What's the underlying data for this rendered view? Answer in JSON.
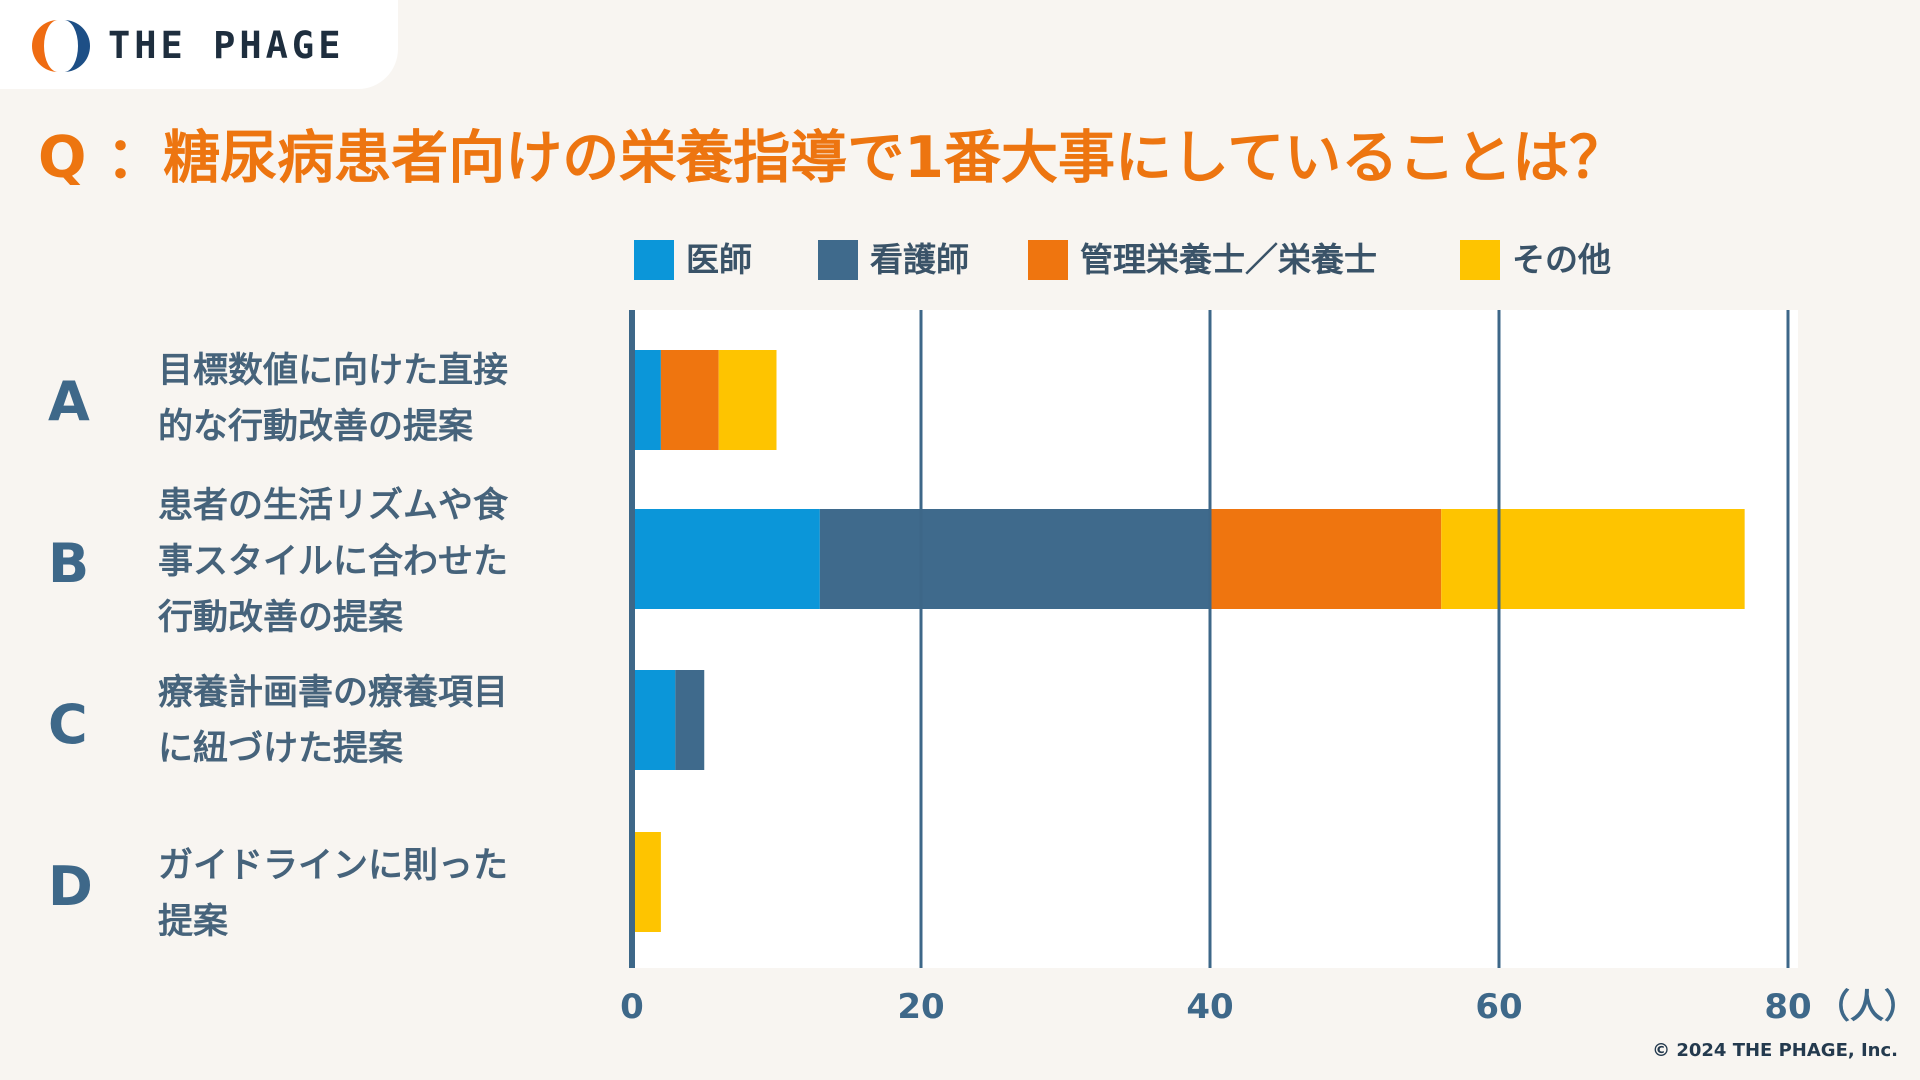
{
  "brand": {
    "name": "THE PHAGE",
    "logo_icon": "phage-logo-icon"
  },
  "question": "Q ：糖尿病患者向けの栄養指導で1番大事にしていることは？",
  "copyright": "© 2024 THE PHAGE, Inc.",
  "colors": {
    "background": "#f8f5f1",
    "accent": "#ed7510",
    "grid": "#3d6788"
  },
  "chart_data": {
    "type": "bar",
    "orientation": "horizontal",
    "stacked": true,
    "title": "Q ：糖尿病患者向けの栄養指導で1番大事にしていることは？",
    "categories": [
      "A",
      "B",
      "C",
      "D"
    ],
    "category_labels": [
      [
        "目標数値に向けた直接",
        "的な行動改善の提案"
      ],
      [
        "患者の生活リズムや食",
        "事スタイルに合わせた",
        "行動改善の提案"
      ],
      [
        "療養計画書の療養項目",
        "に紐づけた提案"
      ],
      [
        "ガイドラインに則った",
        "提案"
      ]
    ],
    "series": [
      {
        "name": "医師",
        "color": "#0b96d9",
        "values": [
          2,
          13,
          3,
          0
        ]
      },
      {
        "name": "看護師",
        "color": "#3f6a8c",
        "values": [
          0,
          27,
          2,
          0
        ]
      },
      {
        "name": "管理栄養士／栄養士",
        "color": "#ef750f",
        "values": [
          4,
          16,
          0,
          0
        ]
      },
      {
        "name": "その他",
        "color": "#fec400",
        "values": [
          4,
          21,
          0,
          2
        ]
      }
    ],
    "x_ticks": [
      "0",
      "20",
      "40",
      "60",
      "80"
    ],
    "x_unit": "（人）",
    "xlim": [
      0,
      80
    ],
    "legend_position": "top",
    "grid": true
  }
}
